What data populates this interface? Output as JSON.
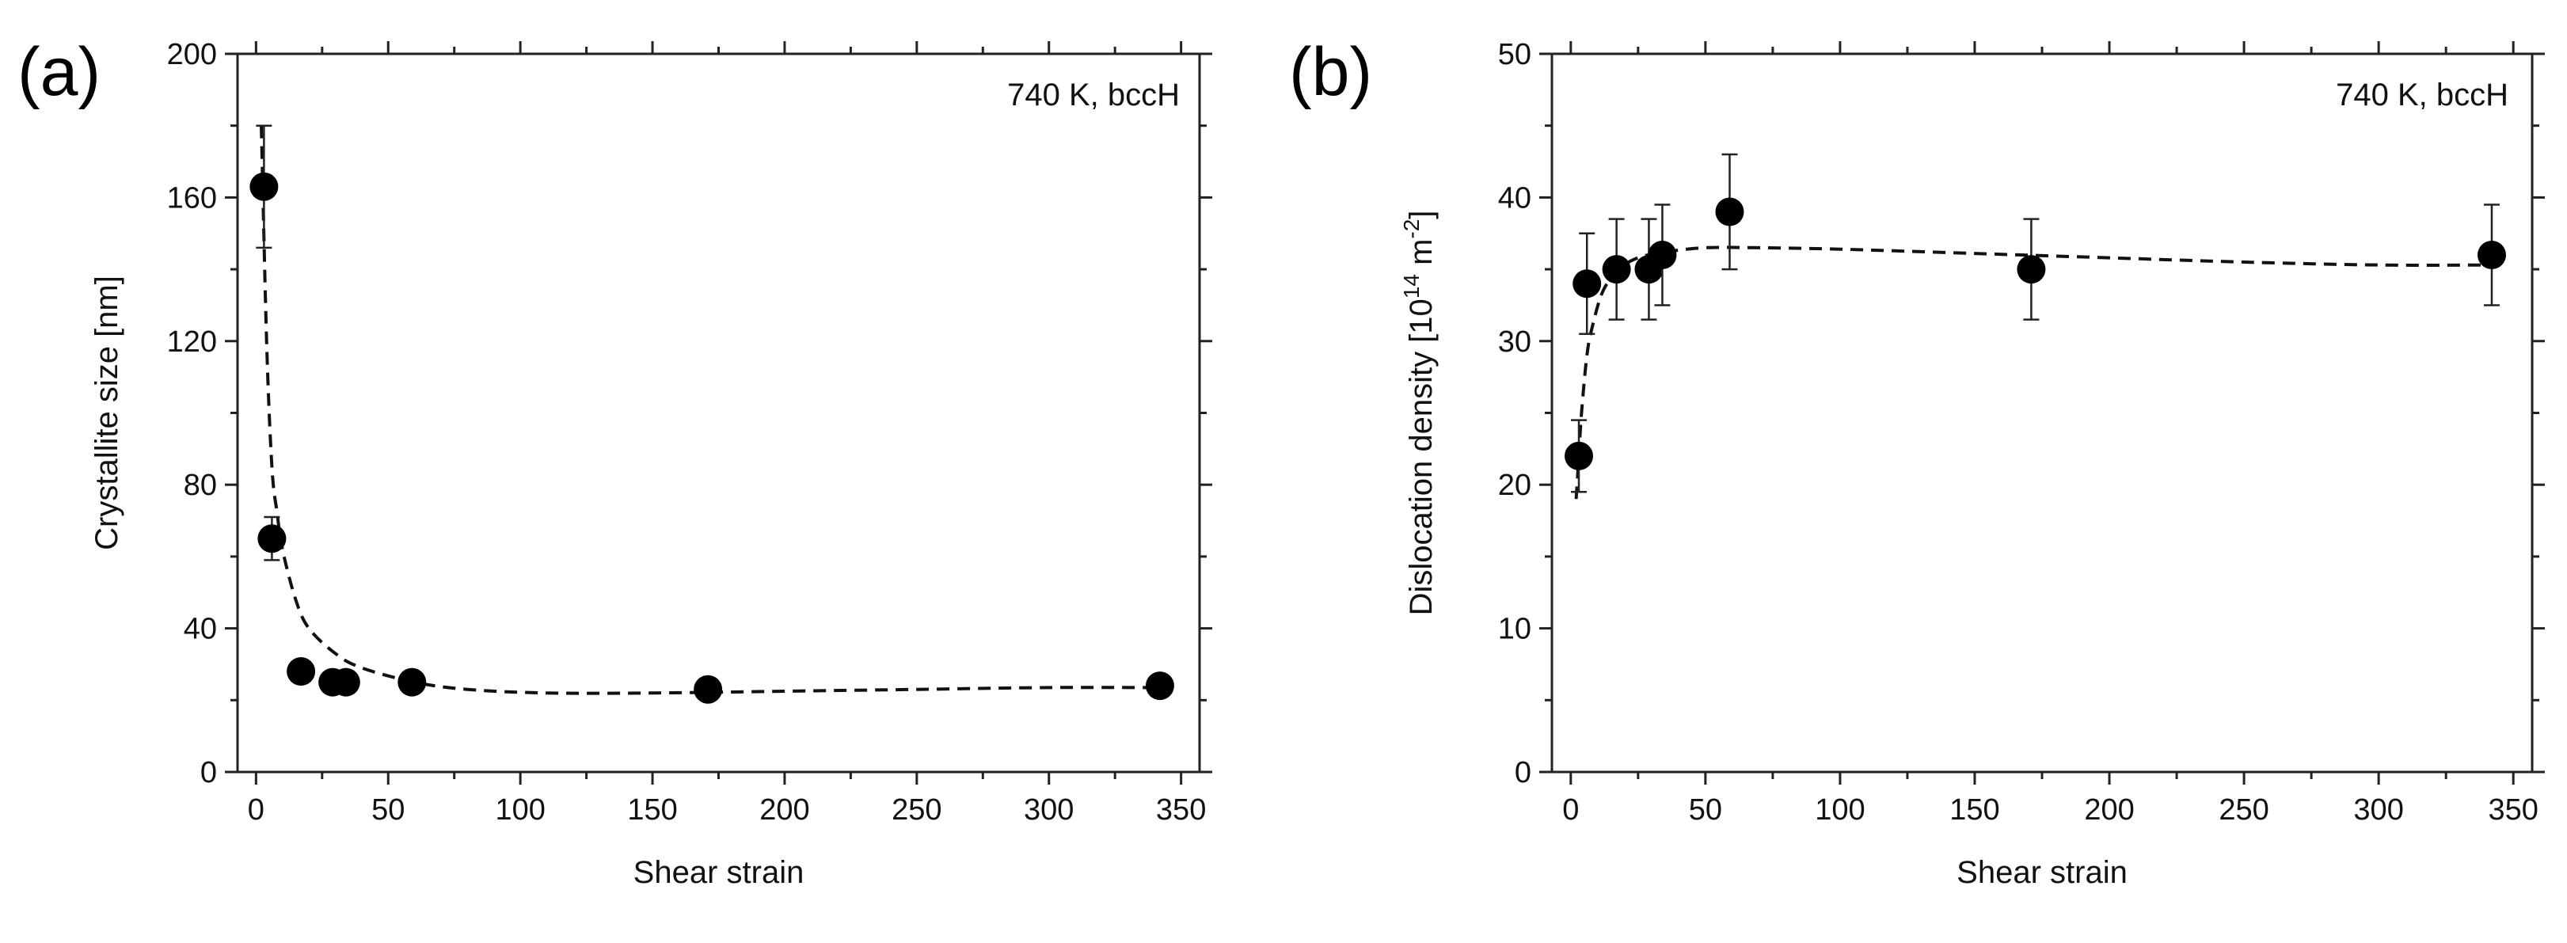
{
  "chart_data": [
    {
      "type": "scatter",
      "panel_label": "(a)",
      "annotation": "740 K, bccH",
      "xlabel": "Shear strain",
      "ylabel": "Crystallite size [nm]",
      "xlim": [
        -7,
        357
      ],
      "ylim": [
        0,
        200
      ],
      "xticks": [
        "0",
        "50",
        "100",
        "150",
        "200",
        "250",
        "300",
        "350"
      ],
      "xtick_values": [
        0,
        50,
        100,
        150,
        200,
        250,
        300,
        350
      ],
      "yticks": [
        "0",
        "40",
        "80",
        "120",
        "160",
        "200"
      ],
      "ytick_values": [
        0,
        40,
        80,
        120,
        160,
        200
      ],
      "series": [
        {
          "name": "Crystallite size",
          "x": [
            3,
            6,
            17,
            29,
            34,
            59,
            171,
            342
          ],
          "y": [
            163,
            65,
            28,
            25,
            25,
            25,
            23,
            24
          ],
          "err": [
            17,
            6,
            3,
            3,
            3,
            3,
            3,
            3
          ]
        }
      ],
      "fit": {
        "x": [
          2,
          4,
          6,
          8,
          10,
          15,
          20,
          30,
          40,
          60,
          80,
          110,
          150,
          200,
          250,
          300,
          342
        ],
        "y": [
          180,
          120,
          85,
          72,
          62,
          48,
          40,
          33,
          29,
          25,
          23,
          22,
          22,
          22.5,
          23,
          23.5,
          23.5
        ]
      }
    },
    {
      "type": "scatter",
      "panel_label": "(b)",
      "annotation": "740 K, bccH",
      "xlabel": "Shear strain",
      "ylabel_main": "Dislocation density [10",
      "ylabel_exp1": "14",
      "ylabel_mid": " m",
      "ylabel_exp2": "-2",
      "ylabel_end": "]",
      "xlim": [
        -7,
        357
      ],
      "ylim": [
        0,
        50
      ],
      "xticks": [
        "0",
        "50",
        "100",
        "150",
        "200",
        "250",
        "300",
        "350"
      ],
      "xtick_values": [
        0,
        50,
        100,
        150,
        200,
        250,
        300,
        350
      ],
      "yticks": [
        "0",
        "10",
        "20",
        "30",
        "40",
        "50"
      ],
      "ytick_values": [
        0,
        10,
        20,
        30,
        40,
        50
      ],
      "series": [
        {
          "name": "Dislocation density",
          "x": [
            3,
            6,
            17,
            29,
            34,
            59,
            171,
            342
          ],
          "y": [
            22,
            34,
            35,
            35,
            36,
            39,
            35,
            36
          ],
          "err": [
            2.5,
            3.5,
            3.5,
            3.5,
            3.5,
            4,
            3.5,
            3.5
          ]
        }
      ],
      "fit": {
        "x": [
          2,
          3,
          4,
          6,
          8,
          12,
          18,
          25,
          35,
          50,
          70,
          100,
          150,
          200,
          250,
          300,
          342
        ],
        "y": [
          19,
          22,
          25,
          29,
          31,
          33.5,
          35,
          35.8,
          36.2,
          36.5,
          36.5,
          36.4,
          36.1,
          35.8,
          35.5,
          35.3,
          35.3
        ]
      }
    }
  ]
}
